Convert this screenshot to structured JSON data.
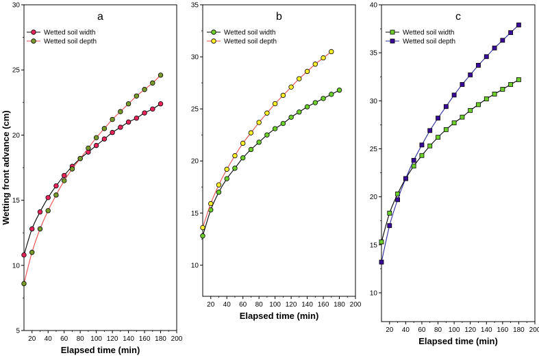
{
  "figure": {
    "ylabel": "Wetting front advance (cm)"
  },
  "chart_data": [
    {
      "type": "line",
      "title": "a",
      "xlabel": "Elapsed time (min)",
      "ylabel": "Wetting front advance (cm)",
      "xlim": [
        10,
        200
      ],
      "ylim": [
        5,
        30
      ],
      "xticks": [
        20,
        40,
        60,
        80,
        100,
        120,
        140,
        160,
        180,
        200
      ],
      "yticks": [
        5,
        10,
        15,
        20,
        25,
        30
      ],
      "tick_labels_x": [
        "20",
        "40",
        "60",
        "80",
        "100",
        "120",
        "140",
        "160",
        "180",
        "200"
      ],
      "tick_labels_y": [
        "5",
        "10",
        "15",
        "20",
        "25",
        "30"
      ],
      "legend_position": "top-left",
      "series": [
        {
          "name": "Wetted soil width",
          "marker": "circle",
          "marker_color": "#e8245a",
          "line_color": "#000000",
          "x": [
            10,
            20,
            30,
            40,
            50,
            60,
            70,
            80,
            90,
            100,
            110,
            120,
            130,
            140,
            150,
            160,
            170,
            180
          ],
          "values": [
            10.8,
            12.8,
            14.1,
            15.2,
            16.1,
            16.9,
            17.6,
            18.2,
            18.7,
            19.2,
            19.7,
            20.2,
            20.6,
            21.0,
            21.3,
            21.7,
            22.0,
            22.4
          ]
        },
        {
          "name": "Wetted soil depth",
          "marker": "circle",
          "marker_color": "#7a9a2a",
          "line_color": "#e84a4a",
          "x": [
            10,
            20,
            30,
            40,
            50,
            60,
            70,
            80,
            90,
            100,
            110,
            120,
            130,
            140,
            150,
            160,
            170,
            180
          ],
          "values": [
            8.6,
            11.0,
            12.8,
            14.2,
            15.4,
            16.5,
            17.4,
            18.2,
            19.0,
            19.8,
            20.5,
            21.2,
            21.8,
            22.4,
            23.0,
            23.5,
            24.0,
            24.6
          ]
        }
      ]
    },
    {
      "type": "line",
      "title": "b",
      "xlabel": "Elapsed time (min)",
      "ylabel": "",
      "xlim": [
        10,
        200
      ],
      "ylim": [
        7,
        35
      ],
      "xticks": [
        20,
        40,
        60,
        80,
        100,
        120,
        140,
        160,
        180,
        200
      ],
      "yticks": [
        10,
        15,
        20,
        25,
        30,
        35
      ],
      "tick_labels_x": [
        "20",
        "40",
        "60",
        "80",
        "100",
        "120",
        "140",
        "160",
        "180",
        "200"
      ],
      "tick_labels_y": [
        "10",
        "15",
        "20",
        "25",
        "30",
        "35"
      ],
      "legend_position": "top-left",
      "series": [
        {
          "name": "Wetted soil width",
          "marker": "circle",
          "marker_color": "#6ccf2a",
          "line_color": "#000000",
          "x": [
            10,
            20,
            30,
            40,
            50,
            60,
            70,
            80,
            90,
            100,
            110,
            120,
            130,
            140,
            150,
            160,
            170,
            180
          ],
          "values": [
            12.8,
            15.3,
            17.0,
            18.3,
            19.3,
            20.3,
            21.1,
            21.8,
            22.5,
            23.1,
            23.6,
            24.2,
            24.7,
            25.2,
            25.6,
            26.0,
            26.4,
            26.8
          ]
        },
        {
          "name": "Wetted soil depth",
          "marker": "circle",
          "marker_color": "#ffef2a",
          "line_color": "#e84a4a",
          "x": [
            10,
            20,
            30,
            40,
            50,
            60,
            70,
            80,
            90,
            100,
            110,
            120,
            130,
            140,
            150,
            160,
            170
          ],
          "values": [
            13.6,
            15.9,
            17.7,
            19.2,
            20.5,
            21.7,
            22.7,
            23.7,
            24.6,
            25.5,
            26.3,
            27.1,
            27.9,
            28.6,
            29.3,
            29.9,
            30.5
          ]
        }
      ]
    },
    {
      "type": "line",
      "title": "c",
      "xlabel": "Elapsed time (min)",
      "ylabel": "",
      "xlim": [
        10,
        200
      ],
      "ylim": [
        7,
        40
      ],
      "xticks": [
        20,
        40,
        60,
        80,
        100,
        120,
        140,
        160,
        180,
        200
      ],
      "yticks": [
        10,
        15,
        20,
        25,
        30,
        35,
        40
      ],
      "tick_labels_x": [
        "20",
        "40",
        "60",
        "80",
        "100",
        "120",
        "140",
        "160",
        "180",
        "200"
      ],
      "tick_labels_y": [
        "10",
        "15",
        "20",
        "25",
        "30",
        "35",
        "40"
      ],
      "legend_position": "top-left",
      "series": [
        {
          "name": "Wetted soil width",
          "marker": "square",
          "marker_color": "#6ccf2a",
          "line_color": "#000000",
          "x": [
            10,
            20,
            30,
            40,
            50,
            60,
            70,
            80,
            90,
            100,
            110,
            120,
            130,
            140,
            150,
            160,
            170,
            180
          ],
          "values": [
            15.3,
            18.3,
            20.3,
            21.9,
            23.2,
            24.3,
            25.3,
            26.2,
            27.0,
            27.7,
            28.3,
            29.0,
            29.6,
            30.2,
            30.7,
            31.2,
            31.7,
            32.2
          ]
        },
        {
          "name": "Wetted soil depth",
          "marker": "square",
          "marker_color": "#3a0a9a",
          "line_color": "#2a2a9a",
          "x": [
            10,
            20,
            30,
            40,
            50,
            60,
            70,
            80,
            90,
            100,
            110,
            120,
            130,
            140,
            150,
            160,
            170,
            180
          ],
          "values": [
            13.2,
            17.0,
            19.7,
            21.9,
            23.8,
            25.4,
            26.9,
            28.2,
            29.4,
            30.6,
            31.7,
            32.7,
            33.7,
            34.6,
            35.5,
            36.3,
            37.1,
            37.9
          ]
        }
      ]
    }
  ]
}
